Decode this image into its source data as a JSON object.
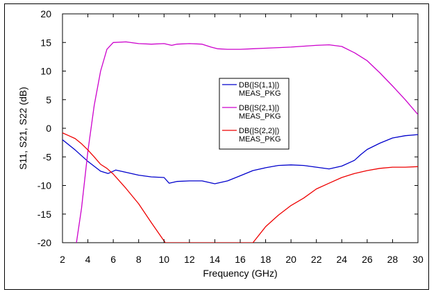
{
  "chart_data": {
    "type": "line",
    "title": "",
    "xlabel": "Frequency (GHz)",
    "ylabel": "S11, S21, S22 (dB)",
    "xlim": [
      2,
      30
    ],
    "ylim": [
      -20,
      20
    ],
    "x_ticks": [
      "2",
      "4",
      "6",
      "8",
      "10",
      "12",
      "14",
      "16",
      "18",
      "20",
      "22",
      "24",
      "26",
      "28",
      "30"
    ],
    "y_ticks": [
      "20",
      "15",
      "10",
      "5",
      "0",
      "-5",
      "-10",
      "-15",
      "-20"
    ],
    "grid": false,
    "legend_placement": "center",
    "series": [
      {
        "name": "DB(|S(1,1)|)",
        "name_line2": "MEAS_PKG",
        "color": "#0000cc",
        "points": [
          [
            2,
            -2
          ],
          [
            3,
            -3.8
          ],
          [
            4,
            -5.8
          ],
          [
            5,
            -7.5
          ],
          [
            5.6,
            -7.9
          ],
          [
            6.2,
            -7.3
          ],
          [
            7,
            -7.7
          ],
          [
            8,
            -8.2
          ],
          [
            9,
            -8.5
          ],
          [
            10,
            -8.6
          ],
          [
            10.4,
            -9.6
          ],
          [
            11,
            -9.3
          ],
          [
            12,
            -9.2
          ],
          [
            13,
            -9.2
          ],
          [
            14,
            -9.7
          ],
          [
            15,
            -9.2
          ],
          [
            16,
            -8.3
          ],
          [
            17,
            -7.4
          ],
          [
            18,
            -6.9
          ],
          [
            19,
            -6.5
          ],
          [
            20,
            -6.4
          ],
          [
            21,
            -6.5
          ],
          [
            22,
            -6.8
          ],
          [
            23,
            -7.1
          ],
          [
            24,
            -6.6
          ],
          [
            25,
            -5.6
          ],
          [
            25.5,
            -4.6
          ],
          [
            26,
            -3.7
          ],
          [
            27,
            -2.6
          ],
          [
            28,
            -1.7
          ],
          [
            29,
            -1.3
          ],
          [
            30,
            -1.1
          ]
        ]
      },
      {
        "name": "DB(|S(2,1)|)",
        "name_line2": "MEAS_PKG",
        "color": "#cc00cc",
        "points": [
          [
            3.1,
            -20
          ],
          [
            3.5,
            -14
          ],
          [
            4,
            -4
          ],
          [
            4.5,
            4
          ],
          [
            5,
            10
          ],
          [
            5.5,
            13.8
          ],
          [
            6,
            15
          ],
          [
            7,
            15.1
          ],
          [
            8,
            14.8
          ],
          [
            9,
            14.7
          ],
          [
            10,
            14.8
          ],
          [
            10.6,
            14.5
          ],
          [
            11,
            14.7
          ],
          [
            12,
            14.8
          ],
          [
            13,
            14.7
          ],
          [
            13.7,
            14.2
          ],
          [
            14.2,
            13.9
          ],
          [
            15,
            13.8
          ],
          [
            16,
            13.8
          ],
          [
            17,
            13.9
          ],
          [
            18,
            14
          ],
          [
            20,
            14.2
          ],
          [
            22,
            14.5
          ],
          [
            23,
            14.6
          ],
          [
            24,
            14.3
          ],
          [
            25,
            13.2
          ],
          [
            26,
            11.8
          ],
          [
            27,
            9.7
          ],
          [
            28,
            7.4
          ],
          [
            29,
            5
          ],
          [
            30,
            2.4
          ]
        ]
      },
      {
        "name": "DB(|S(2,2)|)",
        "name_line2": "MEAS_PKG",
        "color": "#ee0000",
        "points": [
          [
            2,
            -0.8
          ],
          [
            2.5,
            -1.3
          ],
          [
            3,
            -1.8
          ],
          [
            3.5,
            -2.7
          ],
          [
            4,
            -3.8
          ],
          [
            4.5,
            -5
          ],
          [
            5,
            -6.3
          ],
          [
            5.5,
            -7
          ],
          [
            6,
            -8
          ],
          [
            7,
            -10.5
          ],
          [
            8,
            -13.2
          ],
          [
            9,
            -16.5
          ],
          [
            10,
            -19.7
          ],
          [
            10.1,
            -20
          ],
          [
            17,
            -20
          ],
          [
            18,
            -17.2
          ],
          [
            19,
            -15.2
          ],
          [
            20,
            -13.5
          ],
          [
            21,
            -12.2
          ],
          [
            22,
            -10.6
          ],
          [
            23,
            -9.6
          ],
          [
            24,
            -8.6
          ],
          [
            25,
            -7.9
          ],
          [
            26,
            -7.4
          ],
          [
            27,
            -7
          ],
          [
            28,
            -6.8
          ],
          [
            29,
            -6.8
          ],
          [
            30,
            -6.7
          ]
        ]
      }
    ]
  }
}
